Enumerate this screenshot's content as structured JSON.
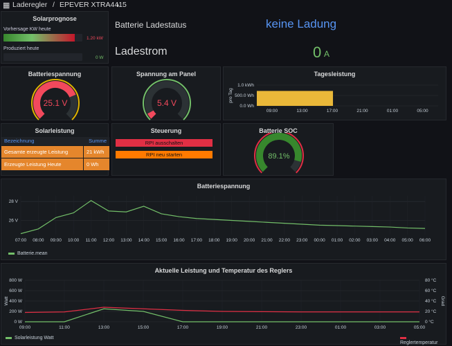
{
  "header": {
    "grid_icon": "apps-icon",
    "folder": "Laderegler",
    "separator": "/",
    "title": "EPEVER XTRA4415",
    "share_icon": "share-icon"
  },
  "prognose": {
    "title": "Solarprognose",
    "forecast_label": "Vorhersage KW heute",
    "forecast_value": "1.20 kW",
    "forecast_fraction": 0.9,
    "produced_label": "Produziert heute",
    "produced_value": "0 W",
    "produced_fraction": 0.0
  },
  "status": {
    "label": "Batterie Ladestatus",
    "value": "keine Ladung",
    "value_color": "#5794f2"
  },
  "ladestrom": {
    "label": "Ladestrom",
    "value": "0",
    "unit": "A",
    "color": "#73bf69"
  },
  "gauges": [
    {
      "title": "Batteriespannung",
      "value": "25.1 V",
      "fraction": 0.75,
      "color": "#f2495c",
      "threshold_color": "#e0b400",
      "track": "#2c3235"
    },
    {
      "title": "Spannung am Panel",
      "value": "5.4 V",
      "fraction": 0.06,
      "color": "#f2495c",
      "threshold_color": "#73bf69",
      "track": "#2c3235"
    },
    {
      "title": "Batterie SOC",
      "value": "89.1%",
      "fraction": 0.891,
      "color": "#37872d",
      "threshold_color": "#e02f44",
      "track": "#2c3235"
    }
  ],
  "tagesleistung": {
    "title": "Tagesleistung",
    "ylabel": "pro Tag",
    "yticks": [
      "1.0 kWh",
      "500.0 Wh",
      "0.0 Wh"
    ],
    "xticks": [
      "09:00",
      "13:00",
      "17:00",
      "21:00",
      "01:00",
      "05:00"
    ],
    "bar_value_fraction": 0.72,
    "bar_color": "#eab839"
  },
  "solarleistung": {
    "title": "Solarleistung",
    "columns": [
      "Bezeichnung",
      "Summe"
    ],
    "rows": [
      [
        "Gesamte erzeugte Leistung",
        "21 kWh"
      ],
      [
        "Erzeugte Leistung Heute",
        "0 Wh"
      ]
    ],
    "row_color": "#e5862c",
    "header_color": "#5794f2"
  },
  "steuerung": {
    "title": "Steuerung",
    "buttons": [
      {
        "label": "RPI ausschalten",
        "color": "#e02f44"
      },
      {
        "label": "RPI neu starten",
        "color": "#ff7a00"
      }
    ]
  },
  "chart_data": [
    {
      "type": "line",
      "title": "Batteriespannung",
      "ylim": [
        24.5,
        28.6
      ],
      "yticks": [
        "28 V",
        "26 V"
      ],
      "x": [
        "07:00",
        "08:00",
        "09:00",
        "10:00",
        "11:00",
        "12:00",
        "13:00",
        "14:00",
        "15:00",
        "16:00",
        "17:00",
        "18:00",
        "19:00",
        "20:00",
        "21:00",
        "22:00",
        "23:00",
        "00:00",
        "01:00",
        "02:00",
        "03:00",
        "04:00",
        "05:00",
        "06:00"
      ],
      "series": [
        {
          "name": "Batterie.mean",
          "color": "#73bf69",
          "values": [
            24.6,
            25.1,
            26.3,
            26.8,
            28.1,
            27.0,
            26.9,
            27.5,
            26.7,
            26.4,
            26.2,
            26.1,
            26.0,
            25.9,
            25.8,
            25.7,
            25.6,
            25.5,
            25.45,
            25.4,
            25.35,
            25.3,
            25.2,
            25.15
          ]
        }
      ],
      "legend": "bottom-left"
    },
    {
      "type": "line",
      "title": "Aktuelle Leistung und Temperatur des Reglers",
      "ylabel_left": "Watt",
      "ylabel_right": "Grad",
      "yticks_left": [
        "800 W",
        "600 W",
        "400 W",
        "200 W",
        "0 W"
      ],
      "yticks_right": [
        "80 °C",
        "60 °C",
        "40 °C",
        "20 °C",
        "0 °C"
      ],
      "ylim": [
        0,
        800
      ],
      "x": [
        "09:00",
        "11:00",
        "13:00",
        "15:00",
        "17:00",
        "19:00",
        "21:00",
        "23:00",
        "01:00",
        "03:00",
        "05:00"
      ],
      "series": [
        {
          "name": "Solarleistung Watt",
          "color": "#73bf69",
          "axis": "left",
          "values": [
            0,
            0,
            250,
            200,
            0,
            0,
            0,
            0,
            0,
            0,
            0
          ]
        },
        {
          "name": "Reglertemperatur",
          "color": "#e02f44",
          "axis": "right",
          "values": [
            18,
            19,
            28,
            25,
            22,
            20,
            19.5,
            19,
            19,
            19,
            19
          ]
        }
      ],
      "legend": "bottom"
    }
  ]
}
